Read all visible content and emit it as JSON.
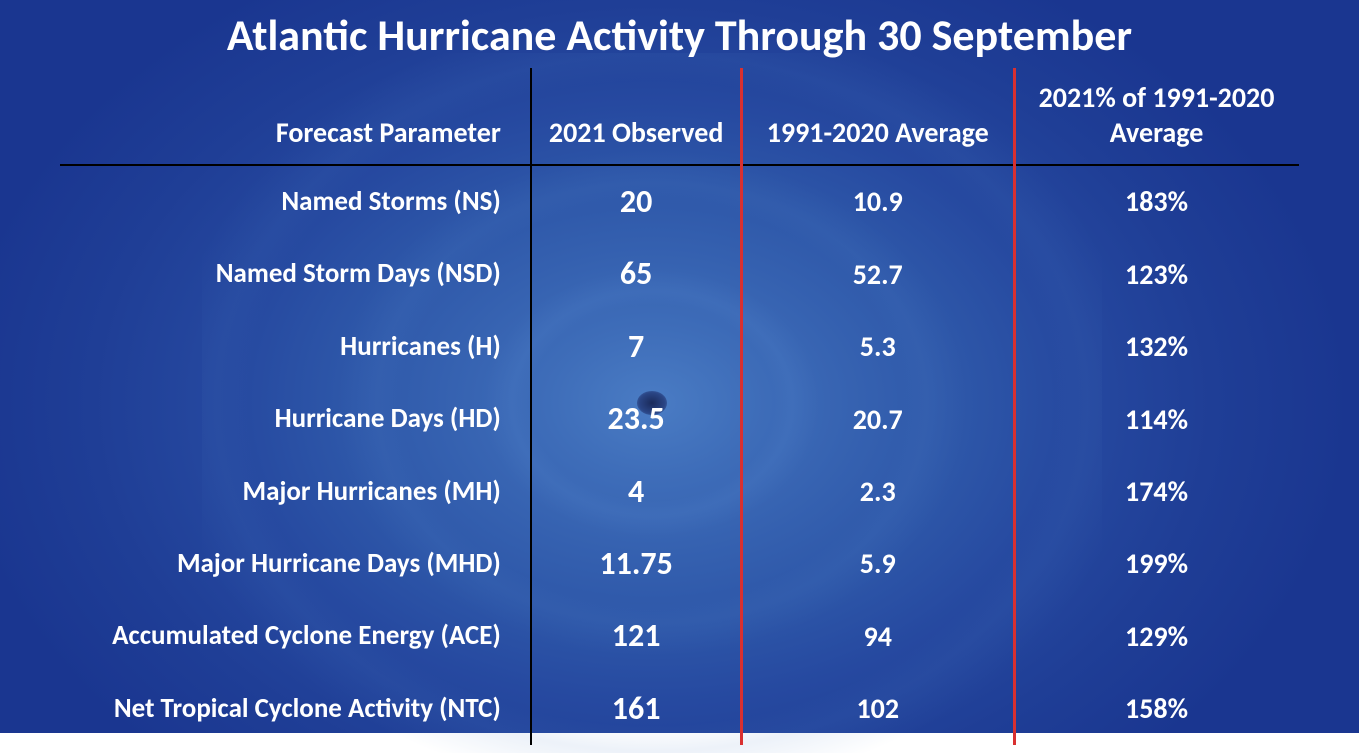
{
  "title": "Atlantic Hurricane Activity Through 30 September",
  "type": "table",
  "background": {
    "primary_color": "#2d56a8",
    "eye_color": "#1a2a5a",
    "swirl_highlight": "#5a8cd2"
  },
  "text_color": "#ffffff",
  "header_border_color": "#000000",
  "divider_colors": {
    "black": "#000000",
    "red": "#d93030"
  },
  "title_fontsize": 44,
  "header_fontsize": 28,
  "param_fontsize": 27,
  "observed_fontsize": 32,
  "value_fontsize": 28,
  "columns": {
    "param": "Forecast Parameter",
    "observed": "2021 Observed",
    "average": "1991-2020 Average",
    "percent": "2021% of 1991-2020 Average"
  },
  "rows": [
    {
      "param": "Named Storms (NS)",
      "observed": "20",
      "average": "10.9",
      "percent": "183%"
    },
    {
      "param": "Named Storm Days (NSD)",
      "observed": "65",
      "average": "52.7",
      "percent": "123%"
    },
    {
      "param": "Hurricanes (H)",
      "observed": "7",
      "average": "5.3",
      "percent": "132%"
    },
    {
      "param": "Hurricane Days (HD)",
      "observed": "23.5",
      "average": "20.7",
      "percent": "114%"
    },
    {
      "param": "Major Hurricanes (MH)",
      "observed": "4",
      "average": "2.3",
      "percent": "174%"
    },
    {
      "param": "Major Hurricane Days (MHD)",
      "observed": "11.75",
      "average": "5.9",
      "percent": "199%"
    },
    {
      "param": "Accumulated Cyclone Energy (ACE)",
      "observed": "121",
      "average": "94",
      "percent": "129%"
    },
    {
      "param": "Net Tropical Cyclone Activity (NTC)",
      "observed": "161",
      "average": "102",
      "percent": "158%"
    }
  ]
}
